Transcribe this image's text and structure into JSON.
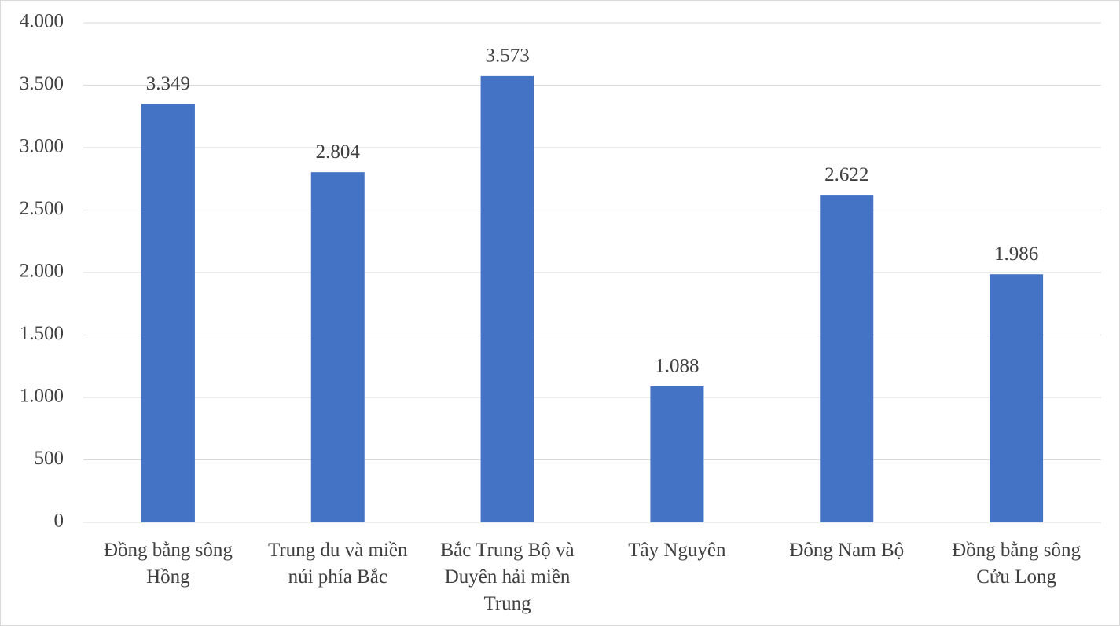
{
  "chart_data": {
    "type": "bar",
    "categories": [
      "Đồng bằng sông Hồng",
      "Trung du và miền núi phía Bắc",
      "Bắc Trung Bộ và Duyên hải miền Trung",
      "Tây Nguyên",
      "Đông Nam Bộ",
      "Đồng bằng sông Cửu Long"
    ],
    "values": [
      3349,
      2804,
      3573,
      1088,
      2622,
      1986
    ],
    "value_labels": [
      "3.349",
      "2.804",
      "3.573",
      "1.088",
      "2.622",
      "1.986"
    ],
    "color": "#4472c4",
    "ylim": [
      0,
      4000
    ],
    "yticks": [
      0,
      500,
      {
        "value": 1000,
        "label": "1.000"
      },
      {
        "value": 1500,
        "label": "1.500"
      },
      {
        "value": 2000,
        "label": "2.000"
      },
      {
        "value": 2500,
        "label": "2.500"
      },
      {
        "value": 3000,
        "label": "3.000"
      },
      {
        "value": 3500,
        "label": "3.500"
      },
      {
        "value": 4000,
        "label": "4.000"
      }
    ],
    "grid": true
  }
}
